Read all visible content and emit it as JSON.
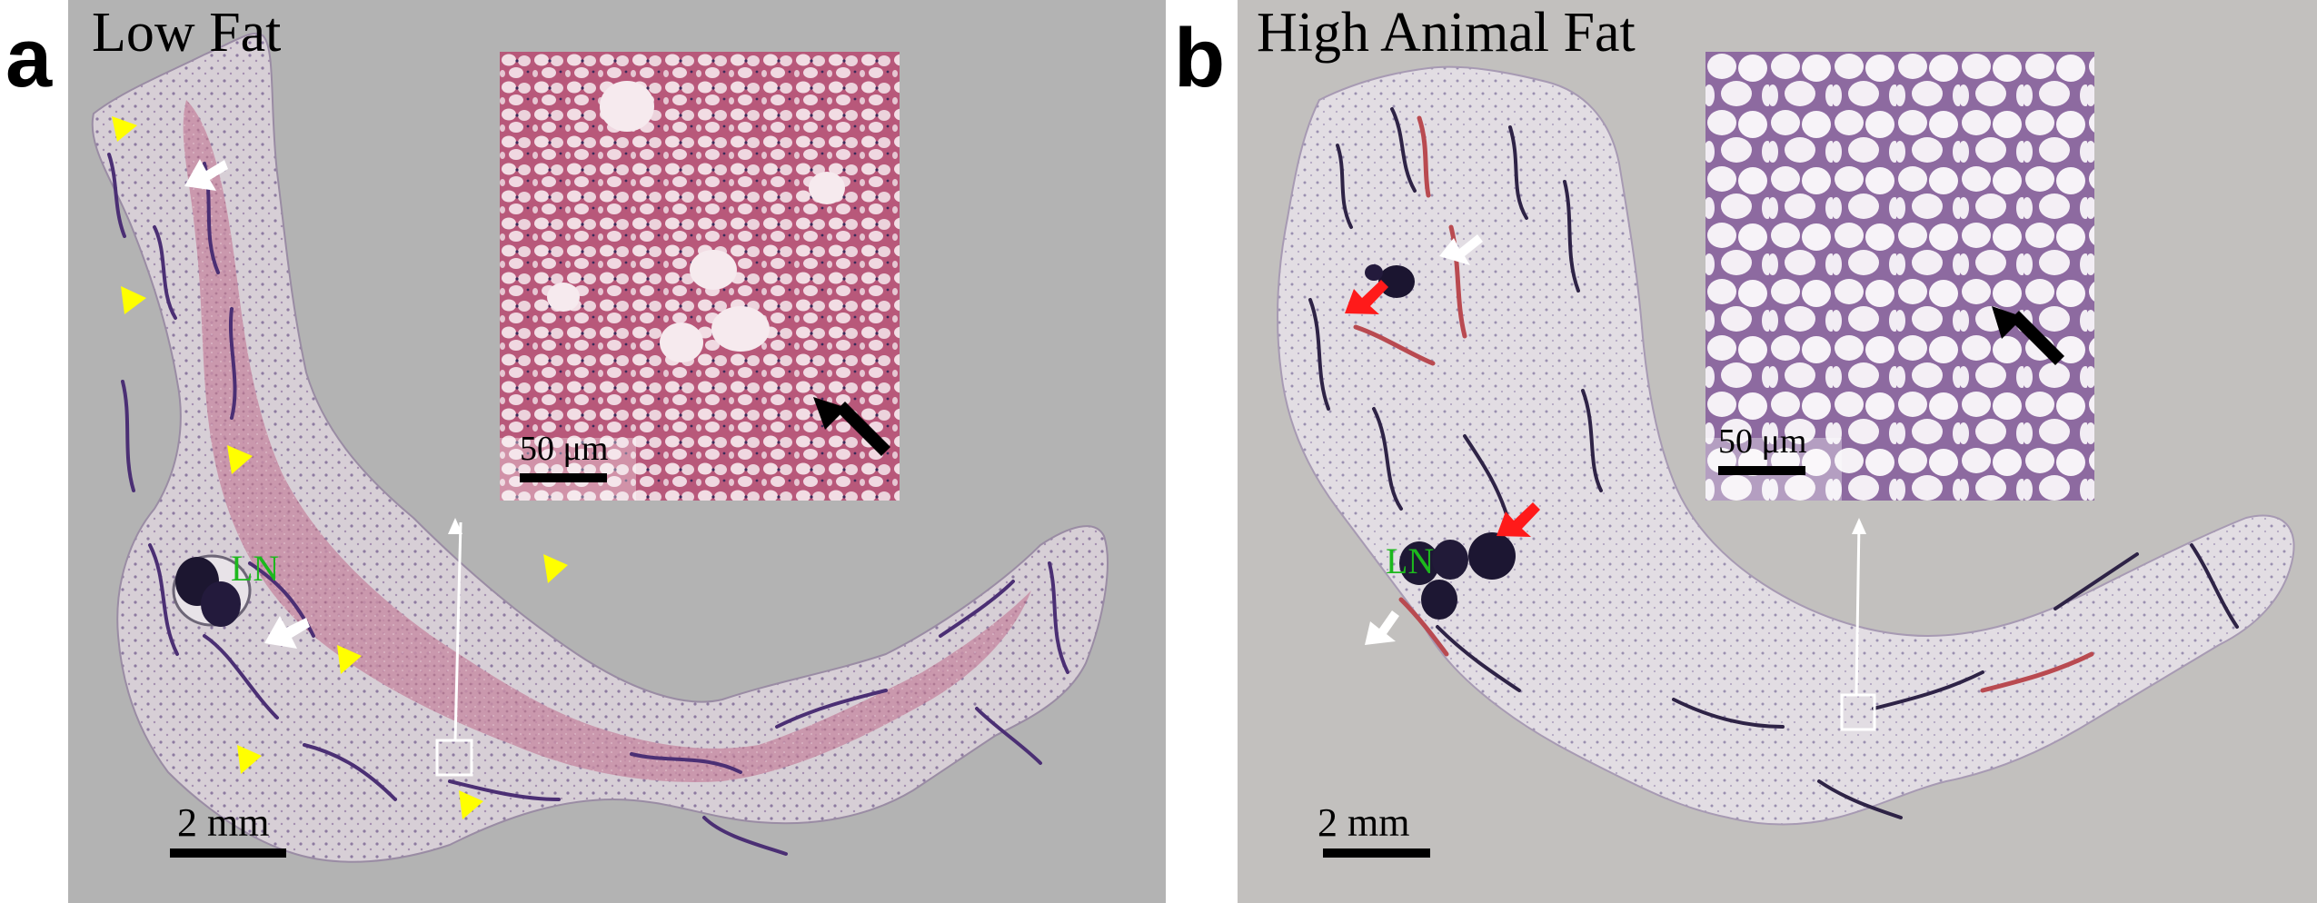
{
  "figure": {
    "panel_a": {
      "letter": "a",
      "title": "Low Fat",
      "scale_bar_label": "2 mm",
      "inset_scale_label": "50 μm",
      "lymph_node_label": "LN",
      "colors": {
        "background": "#b3b3b3",
        "tissue_stain": "#c98fa6",
        "yellow_marker": "#ffff00"
      }
    },
    "panel_b": {
      "letter": "b",
      "title": "High Animal Fat",
      "scale_bar_label": "2 mm",
      "inset_scale_label": "50 μm",
      "lymph_node_label": "LN",
      "colors": {
        "background": "#c2c0be",
        "tissue_stain": "#e8e4ea",
        "red_marker": "#ff1a1a"
      }
    }
  }
}
